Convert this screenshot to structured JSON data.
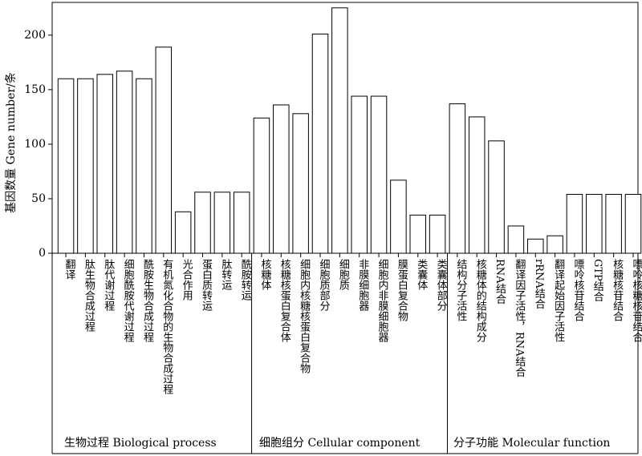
{
  "chart_data": {
    "type": "bar",
    "ylabel": "基因数量 Gene number/条",
    "ylim": [
      0,
      230
    ],
    "yticks": [
      0,
      50,
      100,
      150,
      200
    ],
    "grid": false,
    "groups": [
      {
        "name": "生物过程 Biological process",
        "categories": [
          "翻译",
          "肽生物合成过程",
          "肽代谢过程",
          "细胞酰胺代谢过程",
          "酰胺生物合成过程",
          "有机氮化合物的生物合成过程",
          "光合作用",
          "蛋白质转运",
          "肽转运",
          "酰胺转运"
        ],
        "values": [
          160,
          160,
          164,
          167,
          160,
          189,
          38,
          56,
          56,
          56
        ]
      },
      {
        "name": "细胞组分 Cellular component",
        "categories": [
          "核糖体",
          "核糖核蛋白复合体",
          "细胞内核糖核蛋白复合物",
          "细胞质部分",
          "细胞质",
          "非膜细胞器",
          "细胞内非膜细胞器",
          "膜蛋白复合物",
          "类囊体",
          "类囊体部分"
        ],
        "values": [
          124,
          136,
          128,
          201,
          225,
          144,
          144,
          67,
          35,
          35
        ]
      },
      {
        "name": "分子功能  Molecular function",
        "categories": [
          "结构分子活性",
          "核糖体的结构成分",
          "RNA结合",
          "翻译因子活性，RNA结合",
          "rRNA结合",
          "翻译起始因子活性",
          "嘌呤核苷结合",
          "GTP结合",
          "核糖核苷结合",
          "嘌呤核糖核苷结合"
        ],
        "values": [
          137,
          125,
          103,
          25,
          13,
          16,
          54,
          54,
          54,
          54
        ]
      }
    ]
  }
}
